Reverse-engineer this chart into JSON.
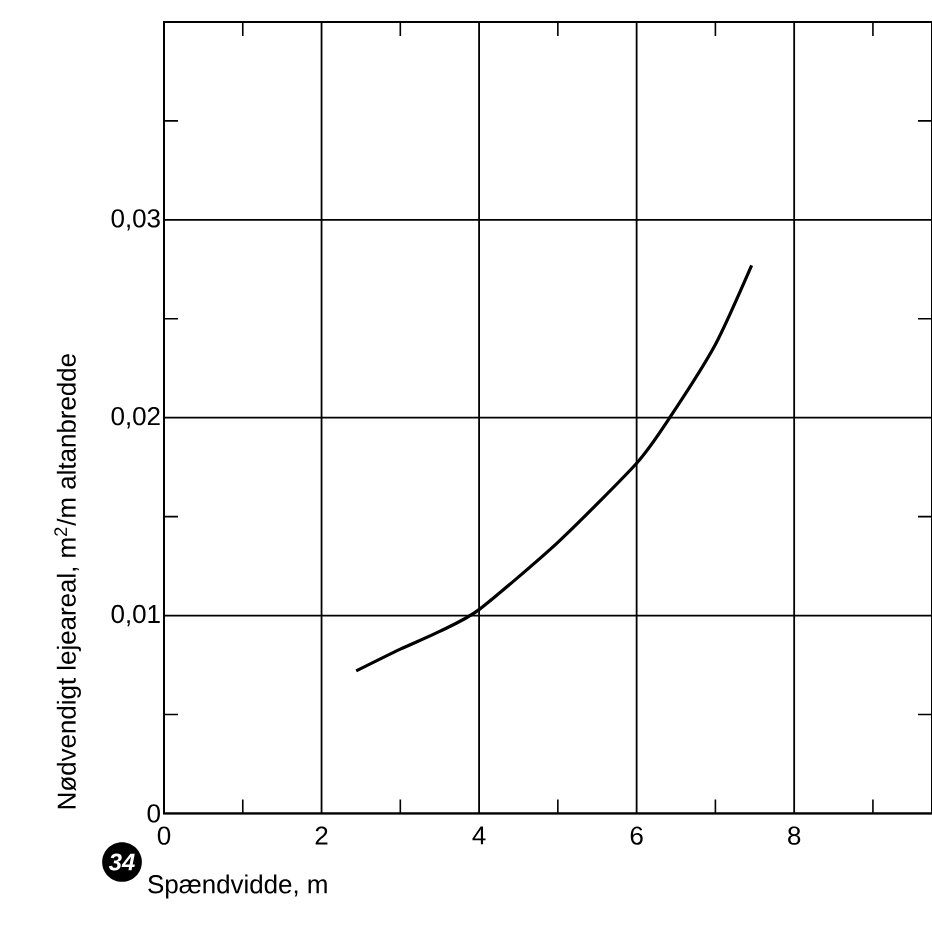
{
  "chart_data": {
    "type": "line",
    "xlabel": "Spændvidde, m",
    "ylabel": "Nødvendigt lejeareal, m$^{2}$/m altanbredde",
    "annotations": [
      "34"
    ],
    "x": [
      2.44,
      3,
      3.5,
      4,
      5,
      6,
      6.42,
      7,
      7.46
    ],
    "series": [
      {
        "color": "#000000",
        "values": [
          0.0072,
          0.0083,
          0.0092,
          0.0103,
          0.0137,
          0.0177,
          0.02,
          0.0237,
          0.0277
        ]
      }
    ],
    "xlim": [
      0,
      9.75
    ],
    "ylim": [
      0,
      0.04
    ],
    "xticks": [
      0,
      {
        "value": 1,
        "label": null
      },
      2,
      {
        "value": 3,
        "label": null
      },
      4,
      {
        "value": 5,
        "label": null
      },
      6,
      {
        "value": 7,
        "label": null
      },
      8,
      {
        "value": 9,
        "label": null
      }
    ],
    "yticks": [
      0,
      {
        "value": 0.005,
        "label": null
      },
      {
        "value": 0.01,
        "label": "0,01"
      },
      {
        "value": 0.015,
        "label": null
      },
      {
        "value": 0.02,
        "label": "0,02"
      },
      {
        "value": 0.025,
        "label": null
      },
      {
        "value": 0.03,
        "label": "0,03"
      },
      {
        "value": 0.035,
        "label": null
      }
    ],
    "grid": true,
    "marker": "none",
    "line_style": "solid"
  }
}
